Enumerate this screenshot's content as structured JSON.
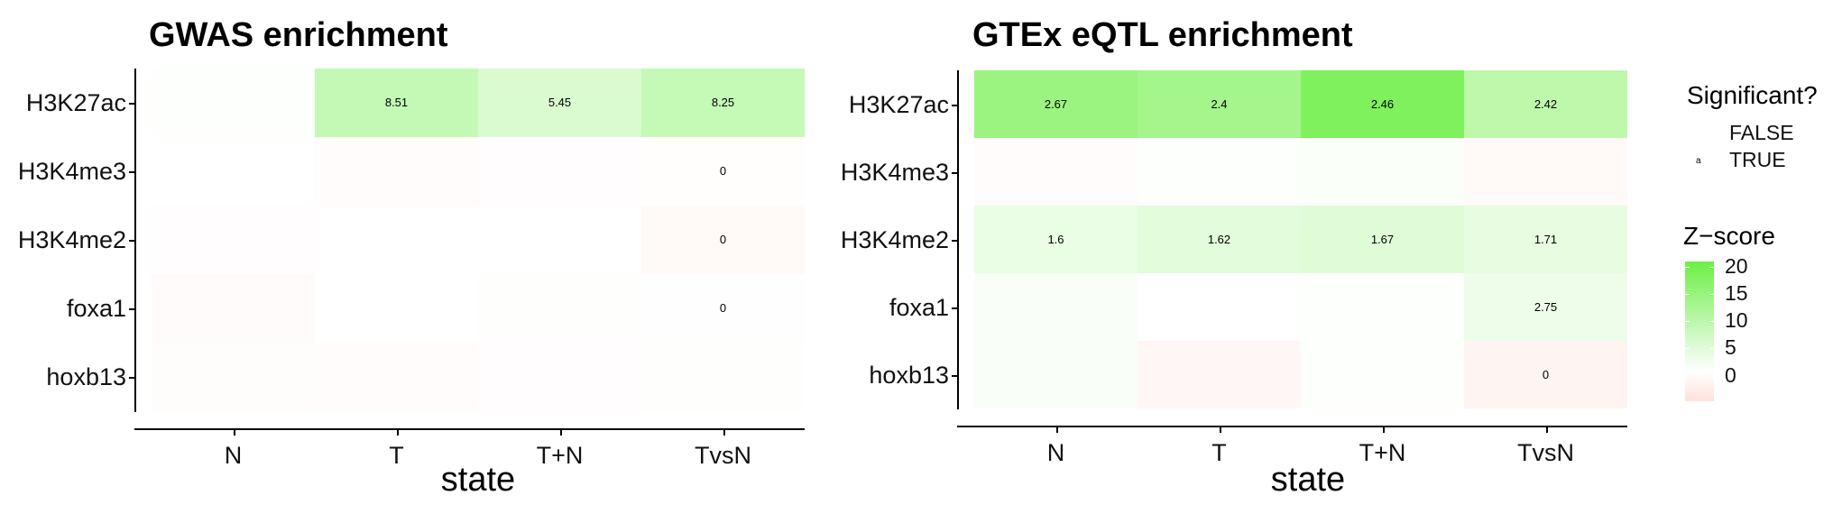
{
  "chart_data": [
    {
      "type": "heatmap",
      "title": "GWAS enrichment",
      "xlabel": "state",
      "ylabel": "",
      "x_categories": [
        "N",
        "T",
        "T+N",
        "TvsN"
      ],
      "y_categories": [
        "H3K27ac",
        "H3K4me3",
        "H3K4me2",
        "foxa1",
        "hoxb13"
      ],
      "z": [
        [
          0.5,
          8.51,
          5.45,
          8.25
        ],
        [
          0.1,
          -0.5,
          -0.3,
          -0.2
        ],
        [
          -0.3,
          0.05,
          0.1,
          -1.0
        ],
        [
          -0.6,
          0.1,
          0.2,
          -0.1
        ],
        [
          -0.4,
          -0.5,
          -0.3,
          0.2
        ]
      ],
      "cell_labels": [
        [
          "",
          "8.51",
          "5.45",
          "8.25"
        ],
        [
          "",
          "",
          "",
          "0"
        ],
        [
          "",
          "",
          "",
          "0"
        ],
        [
          "",
          "",
          "",
          "0"
        ],
        [
          "",
          "",
          "",
          ""
        ]
      ]
    },
    {
      "type": "heatmap",
      "title": "GTEx eQTL enrichment",
      "xlabel": "state",
      "ylabel": "",
      "x_categories": [
        "N",
        "T",
        "T+N",
        "TvsN"
      ],
      "y_categories": [
        "H3K27ac",
        "H3K4me3",
        "H3K4me2",
        "foxa1",
        "hoxb13"
      ],
      "z": [
        [
          14.5,
          13.0,
          18.5,
          9.5
        ],
        [
          -0.5,
          0.5,
          0.6,
          -1.0
        ],
        [
          3.0,
          4.0,
          4.5,
          3.5
        ],
        [
          0.8,
          0.1,
          0.3,
          2.5
        ],
        [
          0.8,
          -1.2,
          0.3,
          -1.5
        ]
      ],
      "cell_labels": [
        [
          "2.67",
          "2.4",
          "2.46",
          "2.42"
        ],
        [
          "",
          "",
          "",
          ""
        ],
        [
          "1.6",
          "1.62",
          "1.67",
          "1.71"
        ],
        [
          "",
          "",
          "",
          "2.75"
        ],
        [
          "",
          "",
          "",
          "0"
        ]
      ]
    }
  ],
  "legend": {
    "significant": {
      "title": "Significant?",
      "entries": [
        {
          "label": "FALSE",
          "symbol": ""
        },
        {
          "label": "TRUE",
          "symbol": "a"
        }
      ]
    },
    "zscore": {
      "title": "Z−score",
      "ticks": [
        "20",
        "15",
        "10",
        "5",
        "0"
      ],
      "range": [
        -4.7,
        21
      ],
      "colors": {
        "low": "#fde1d8",
        "mid": "#ffffff",
        "high": "#6cef46"
      }
    }
  }
}
